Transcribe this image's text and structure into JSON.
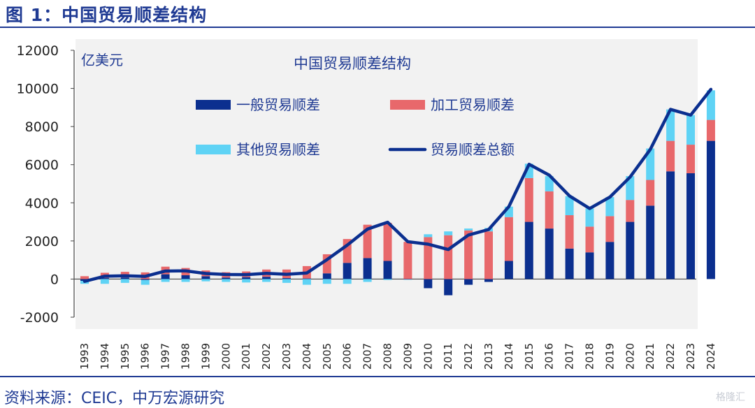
{
  "figure_title": "图 1：中国贸易顺差结构",
  "source": "资料来源：CEIC，中万宏源研究",
  "watermark": "格隆汇",
  "colors": {
    "general": "#0b2f8f",
    "processing": "#e8686b",
    "other": "#5fd3f5",
    "total": "#0b2f8f",
    "rule": "#1f3a93"
  },
  "chart_data": {
    "type": "bar",
    "title": "中国贸易顺差结构",
    "unit_label": "亿美元",
    "ylim": [
      -2000,
      12000
    ],
    "yticks": [
      12000,
      10000,
      8000,
      6000,
      4000,
      2000,
      0,
      -2000
    ],
    "categories": [
      "1993",
      "1994",
      "1995",
      "1996",
      "1997",
      "1998",
      "1999",
      "2000",
      "2001",
      "2002",
      "2003",
      "2004",
      "2005",
      "2006",
      "2007",
      "2008",
      "2009",
      "2010",
      "2011",
      "2012",
      "2013",
      "2014",
      "2015",
      "2016",
      "2017",
      "2018",
      "2019",
      "2020",
      "2021",
      "2022",
      "2023",
      "2024"
    ],
    "series": [
      {
        "name": "一般贸易顺差",
        "kind": "bar",
        "values": [
          -100,
          50,
          80,
          -50,
          250,
          200,
          150,
          80,
          100,
          120,
          50,
          30,
          300,
          850,
          1100,
          950,
          -20,
          -480,
          -850,
          -300,
          -150,
          950,
          3000,
          2650,
          1600,
          1400,
          1950,
          3000,
          3850,
          5650,
          5550,
          7250
        ]
      },
      {
        "name": "加工贸易顺差",
        "kind": "bar",
        "values": [
          150,
          280,
          300,
          350,
          400,
          380,
          300,
          280,
          300,
          380,
          450,
          650,
          1000,
          1250,
          1750,
          2000,
          1950,
          2200,
          2300,
          2550,
          2500,
          2300,
          2300,
          1950,
          1750,
          1350,
          1350,
          1150,
          1350,
          1600,
          1500,
          1100
        ]
      },
      {
        "name": "其他贸易顺差",
        "kind": "bar",
        "values": [
          -150,
          -250,
          -200,
          -250,
          -150,
          -150,
          -120,
          -150,
          -180,
          -150,
          -200,
          -300,
          -250,
          -250,
          -150,
          -50,
          -20,
          150,
          200,
          100,
          180,
          550,
          750,
          800,
          1000,
          950,
          1000,
          1250,
          1650,
          1650,
          1550,
          1550
        ]
      },
      {
        "name": "贸易顺差总额",
        "kind": "line",
        "values": [
          -120,
          150,
          170,
          140,
          420,
          430,
          290,
          240,
          230,
          300,
          250,
          320,
          1020,
          1780,
          2620,
          2980,
          1960,
          1830,
          1550,
          2310,
          2600,
          3800,
          6020,
          5450,
          4360,
          3700,
          4300,
          5350,
          6800,
          8900,
          8600,
          9950
        ]
      }
    ]
  }
}
